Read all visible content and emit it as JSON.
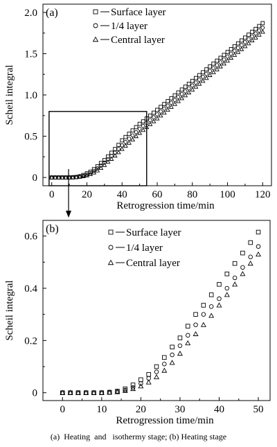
{
  "caption": "(a)  Heating  and   isothermy stage; (b) Heating stage",
  "chart_data": [
    {
      "type": "scatter",
      "panel_label": "(a)",
      "xlabel": "Retrogression time/min",
      "ylabel": "Scheil integral",
      "xlim": [
        -5,
        125
      ],
      "ylim": [
        -0.1,
        2.1
      ],
      "xticks": [
        0,
        20,
        40,
        60,
        80,
        100,
        120
      ],
      "yticks": [
        0,
        0.5,
        1.0,
        1.5,
        2.0
      ],
      "ytick_labels": [
        "0",
        "0.5",
        "1.0",
        "1.5",
        "2.0"
      ],
      "grid": false,
      "legend_position": "top-right",
      "series": [
        {
          "name": "Surface layer",
          "marker": "square",
          "x": [
            0,
            2,
            4,
            6,
            8,
            10,
            12,
            14,
            16,
            18,
            20,
            22,
            24,
            26,
            28,
            30,
            32,
            34,
            36,
            38,
            40,
            42,
            44,
            46,
            48,
            50,
            52,
            54,
            56,
            58,
            60,
            62,
            64,
            66,
            68,
            70,
            72,
            74,
            76,
            78,
            80,
            82,
            84,
            86,
            88,
            90,
            92,
            94,
            96,
            98,
            100,
            102,
            104,
            106,
            108,
            110,
            112,
            114,
            116,
            118,
            120
          ],
          "y": [
            0.0,
            0.0,
            0.0,
            0.0,
            0.0,
            0.0,
            0.002,
            0.006,
            0.015,
            0.03,
            0.05,
            0.07,
            0.1,
            0.135,
            0.175,
            0.21,
            0.255,
            0.3,
            0.345,
            0.395,
            0.45,
            0.49,
            0.53,
            0.57,
            0.61,
            0.65,
            0.68,
            0.715,
            0.75,
            0.785,
            0.82,
            0.855,
            0.89,
            0.925,
            0.96,
            0.995,
            1.03,
            1.065,
            1.1,
            1.135,
            1.17,
            1.205,
            1.24,
            1.275,
            1.31,
            1.345,
            1.38,
            1.415,
            1.45,
            1.485,
            1.52,
            1.555,
            1.59,
            1.625,
            1.66,
            1.695,
            1.73,
            1.765,
            1.8,
            1.835,
            1.87
          ]
        },
        {
          "name": "1/4 layer",
          "marker": "circle",
          "x": [
            0,
            2,
            4,
            6,
            8,
            10,
            12,
            14,
            16,
            18,
            20,
            22,
            24,
            26,
            28,
            30,
            32,
            34,
            36,
            38,
            40,
            42,
            44,
            46,
            48,
            50,
            52,
            54,
            56,
            58,
            60,
            62,
            64,
            66,
            68,
            70,
            72,
            74,
            76,
            78,
            80,
            82,
            84,
            86,
            88,
            90,
            92,
            94,
            96,
            98,
            100,
            102,
            104,
            106,
            108,
            110,
            112,
            114,
            116,
            118,
            120
          ],
          "y": [
            0.0,
            0.0,
            0.0,
            0.0,
            0.0,
            0.0,
            0.001,
            0.004,
            0.01,
            0.02,
            0.035,
            0.055,
            0.08,
            0.11,
            0.145,
            0.18,
            0.22,
            0.26,
            0.3,
            0.345,
            0.39,
            0.43,
            0.47,
            0.51,
            0.55,
            0.59,
            0.625,
            0.66,
            0.695,
            0.73,
            0.765,
            0.8,
            0.835,
            0.87,
            0.905,
            0.94,
            0.975,
            1.01,
            1.045,
            1.08,
            1.115,
            1.15,
            1.185,
            1.22,
            1.255,
            1.29,
            1.325,
            1.36,
            1.395,
            1.43,
            1.465,
            1.5,
            1.535,
            1.57,
            1.605,
            1.64,
            1.675,
            1.71,
            1.745,
            1.78,
            1.815
          ]
        },
        {
          "name": "Central layer",
          "marker": "triangle",
          "x": [
            0,
            2,
            4,
            6,
            8,
            10,
            12,
            14,
            16,
            18,
            20,
            22,
            24,
            26,
            28,
            30,
            32,
            34,
            36,
            38,
            40,
            42,
            44,
            46,
            48,
            50,
            52,
            54,
            56,
            58,
            60,
            62,
            64,
            66,
            68,
            70,
            72,
            74,
            76,
            78,
            80,
            82,
            84,
            86,
            88,
            90,
            92,
            94,
            96,
            98,
            100,
            102,
            104,
            106,
            108,
            110,
            112,
            114,
            116,
            118,
            120
          ],
          "y": [
            0.0,
            0.0,
            0.0,
            0.0,
            0.0,
            0.0,
            0.001,
            0.003,
            0.008,
            0.015,
            0.025,
            0.04,
            0.06,
            0.085,
            0.115,
            0.15,
            0.19,
            0.225,
            0.265,
            0.305,
            0.345,
            0.385,
            0.42,
            0.46,
            0.5,
            0.54,
            0.575,
            0.61,
            0.645,
            0.68,
            0.715,
            0.75,
            0.785,
            0.82,
            0.855,
            0.89,
            0.925,
            0.96,
            0.995,
            1.03,
            1.065,
            1.1,
            1.135,
            1.17,
            1.205,
            1.24,
            1.275,
            1.31,
            1.345,
            1.38,
            1.415,
            1.45,
            1.485,
            1.52,
            1.555,
            1.59,
            1.625,
            1.66,
            1.695,
            1.73,
            1.765
          ]
        }
      ]
    },
    {
      "type": "scatter",
      "panel_label": "(b)",
      "xlabel": "Retrogression time/min",
      "ylabel": "Scheil integral",
      "xlim": [
        -5,
        53
      ],
      "ylim": [
        -0.03,
        0.66
      ],
      "xticks": [
        0,
        10,
        20,
        30,
        40,
        50
      ],
      "yticks": [
        0,
        0.2,
        0.4,
        0.6
      ],
      "ytick_labels": [
        "0",
        "0.2",
        "0.4",
        "0.6"
      ],
      "grid": false,
      "legend_position": "top-left",
      "series": [
        {
          "name": "Surface layer",
          "marker": "square",
          "x": [
            0,
            2,
            4,
            6,
            8,
            10,
            12,
            14,
            16,
            18,
            20,
            22,
            24,
            26,
            28,
            30,
            32,
            34,
            36,
            38,
            40,
            42,
            44,
            46,
            48,
            50
          ],
          "y": [
            0.0,
            0.0,
            0.0,
            0.0,
            0.0,
            0.0,
            0.002,
            0.006,
            0.015,
            0.03,
            0.05,
            0.07,
            0.1,
            0.135,
            0.175,
            0.21,
            0.255,
            0.3,
            0.335,
            0.375,
            0.415,
            0.455,
            0.495,
            0.535,
            0.575,
            0.615
          ]
        },
        {
          "name": "1/4 layer",
          "marker": "circle",
          "x": [
            0,
            2,
            4,
            6,
            8,
            10,
            12,
            14,
            16,
            18,
            20,
            22,
            24,
            26,
            28,
            30,
            32,
            34,
            36,
            38,
            40,
            42,
            44,
            46,
            48,
            50
          ],
          "y": [
            0.0,
            0.0,
            0.0,
            0.0,
            0.0,
            0.0,
            0.001,
            0.004,
            0.01,
            0.02,
            0.035,
            0.055,
            0.08,
            0.11,
            0.145,
            0.18,
            0.22,
            0.26,
            0.3,
            0.33,
            0.36,
            0.4,
            0.44,
            0.48,
            0.52,
            0.56
          ]
        },
        {
          "name": "Central layer",
          "marker": "triangle",
          "x": [
            0,
            2,
            4,
            6,
            8,
            10,
            12,
            14,
            16,
            18,
            20,
            22,
            24,
            26,
            28,
            30,
            32,
            34,
            36,
            38,
            40,
            42,
            44,
            46,
            48,
            50
          ],
          "y": [
            0.0,
            0.0,
            0.0,
            0.0,
            0.0,
            0.0,
            0.001,
            0.003,
            0.008,
            0.015,
            0.025,
            0.04,
            0.06,
            0.085,
            0.115,
            0.15,
            0.19,
            0.225,
            0.26,
            0.295,
            0.335,
            0.375,
            0.415,
            0.455,
            0.495,
            0.53
          ]
        }
      ]
    }
  ]
}
